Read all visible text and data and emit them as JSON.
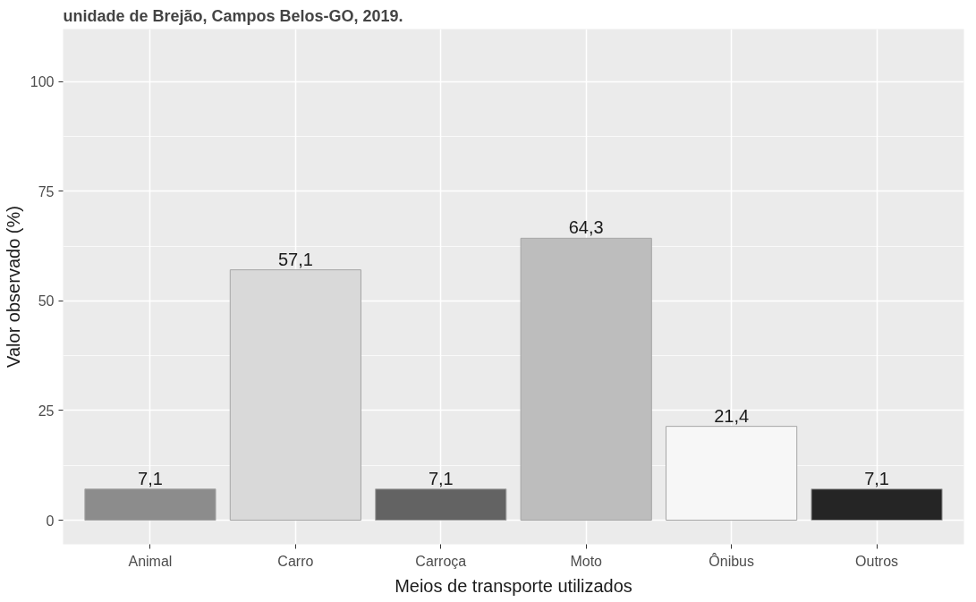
{
  "chart_data": {
    "type": "bar",
    "title": "unidade de Brejão, Campos Belos-GO, 2019.",
    "xlabel": "Meios de transporte utilizados",
    "ylabel": "Valor observado (%)",
    "categories": [
      "Animal",
      "Carro",
      "Carroça",
      "Moto",
      "Ônibus",
      "Outros"
    ],
    "values": [
      7.1,
      57.1,
      7.1,
      64.3,
      21.4,
      7.1
    ],
    "colors": [
      "#8c8c8c",
      "#d9d9d9",
      "#636363",
      "#bdbdbd",
      "#f7f7f7",
      "#252525"
    ],
    "value_labels": [
      "7,1",
      "57,1",
      "7,1",
      "64,3",
      "21,4",
      "7,1"
    ],
    "ylim": [
      -5.5,
      112
    ],
    "yticks": [
      0,
      25,
      50,
      75,
      100
    ],
    "grid": true
  }
}
